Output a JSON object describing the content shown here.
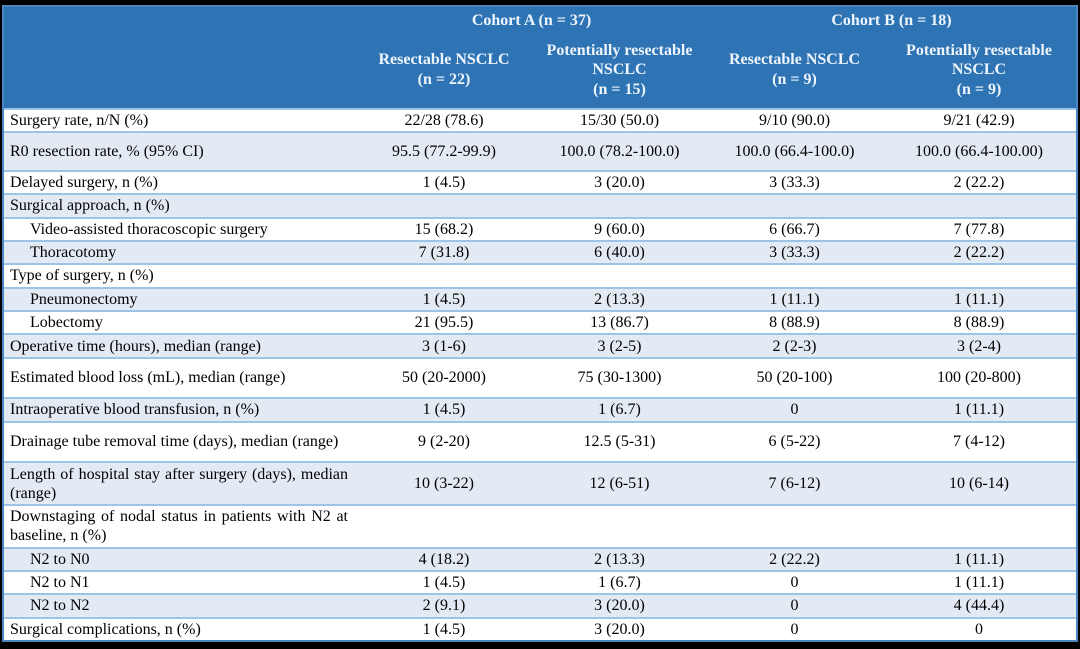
{
  "table": {
    "colors": {
      "header_bg": "#2e74b5",
      "header_text": "#eef5fc",
      "row_bg": "#ffffff",
      "row_alt_bg": "#e3eaf4",
      "row_border": "#9dc3e6",
      "outer_border": "#4c86c2",
      "frame": "#000000",
      "text": "#000000"
    },
    "header": {
      "cohorts": [
        {
          "label": "Cohort A (n = 37)"
        },
        {
          "label": "Cohort B (n = 18)"
        }
      ],
      "columns": [
        {
          "name": "Resectable NSCLC",
          "n": "(n = 22)"
        },
        {
          "name": "Potentially resectable NSCLC",
          "n": "(n = 15)"
        },
        {
          "name": "Resectable NSCLC",
          "n": "(n = 9)"
        },
        {
          "name": "Potentially resectable NSCLC",
          "n": "(n = 9)"
        }
      ]
    },
    "rows": [
      {
        "label": "Surgery rate, n/N (%)",
        "indent": false,
        "values": [
          "22/28 (78.6)",
          "15/30 (50.0)",
          "9/10 (90.0)",
          "9/21 (42.9)"
        ]
      },
      {
        "label": "R0 resection rate, % (95% CI)",
        "indent": false,
        "values": [
          "95.5 (77.2-99.9)",
          "100.0 (78.2-100.0)",
          "100.0 (66.4-100.0)",
          "100.0 (66.4-100.00)"
        ]
      },
      {
        "label": "Delayed surgery, n (%)",
        "indent": false,
        "values": [
          "1 (4.5)",
          "3 (20.0)",
          "3 (33.3)",
          "2 (22.2)"
        ]
      },
      {
        "label": "Surgical approach, n (%)",
        "indent": false,
        "values": [
          "",
          "",
          "",
          ""
        ]
      },
      {
        "label": "Video-assisted thoracoscopic surgery",
        "indent": true,
        "values": [
          "15 (68.2)",
          "9 (60.0)",
          "6 (66.7)",
          "7 (77.8)"
        ]
      },
      {
        "label": "Thoracotomy",
        "indent": true,
        "values": [
          "7 (31.8)",
          "6 (40.0)",
          "3 (33.3)",
          "2 (22.2)"
        ]
      },
      {
        "label": "Type of surgery, n (%)",
        "indent": false,
        "values": [
          "",
          "",
          "",
          ""
        ]
      },
      {
        "label": "Pneumonectomy",
        "indent": true,
        "values": [
          "1 (4.5)",
          "2 (13.3)",
          "1 (11.1)",
          "1 (11.1)"
        ]
      },
      {
        "label": "Lobectomy",
        "indent": true,
        "values": [
          "21 (95.5)",
          "13 (86.7)",
          "8 (88.9)",
          "8 (88.9)"
        ]
      },
      {
        "label": "Operative time (hours), median (range)",
        "indent": false,
        "values": [
          "3 (1-6)",
          "3 (2-5)",
          "2 (2-3)",
          "3 (2-4)"
        ]
      },
      {
        "label": "Estimated blood loss (mL), median (range)",
        "indent": false,
        "values": [
          "50 (20-2000)",
          "75 (30-1300)",
          "50 (20-100)",
          "100 (20-800)"
        ]
      },
      {
        "label": "Intraoperative blood transfusion, n (%)",
        "indent": false,
        "values": [
          "1 (4.5)",
          "1 (6.7)",
          "0",
          "1 (11.1)"
        ]
      },
      {
        "label": "Drainage tube removal time (days), median (range)",
        "indent": false,
        "values": [
          "9 (2-20)",
          "12.5 (5-31)",
          "6 (5-22)",
          "7 (4-12)"
        ]
      },
      {
        "label": "Length of hospital stay after surgery (days), median (range)",
        "indent": false,
        "values": [
          "10 (3-22)",
          "12 (6-51)",
          "7 (6-12)",
          "10 (6-14)"
        ]
      },
      {
        "label": "Downstaging of nodal status in patients with N2 at baseline, n (%)",
        "indent": false,
        "values": [
          "",
          "",
          "",
          ""
        ]
      },
      {
        "label": "N2 to N0",
        "indent": true,
        "values": [
          "4 (18.2)",
          "2 (13.3)",
          "2 (22.2)",
          "1 (11.1)"
        ]
      },
      {
        "label": "N2 to N1",
        "indent": true,
        "values": [
          "1 (4.5)",
          "1 (6.7)",
          "0",
          "1 (11.1)"
        ]
      },
      {
        "label": "N2 to N2",
        "indent": true,
        "values": [
          "2 (9.1)",
          "3 (20.0)",
          "0",
          "4 (44.4)"
        ]
      },
      {
        "label": "Surgical complications, n (%)",
        "indent": false,
        "values": [
          "1 (4.5)",
          "3 (20.0)",
          "0",
          "0"
        ]
      }
    ]
  }
}
